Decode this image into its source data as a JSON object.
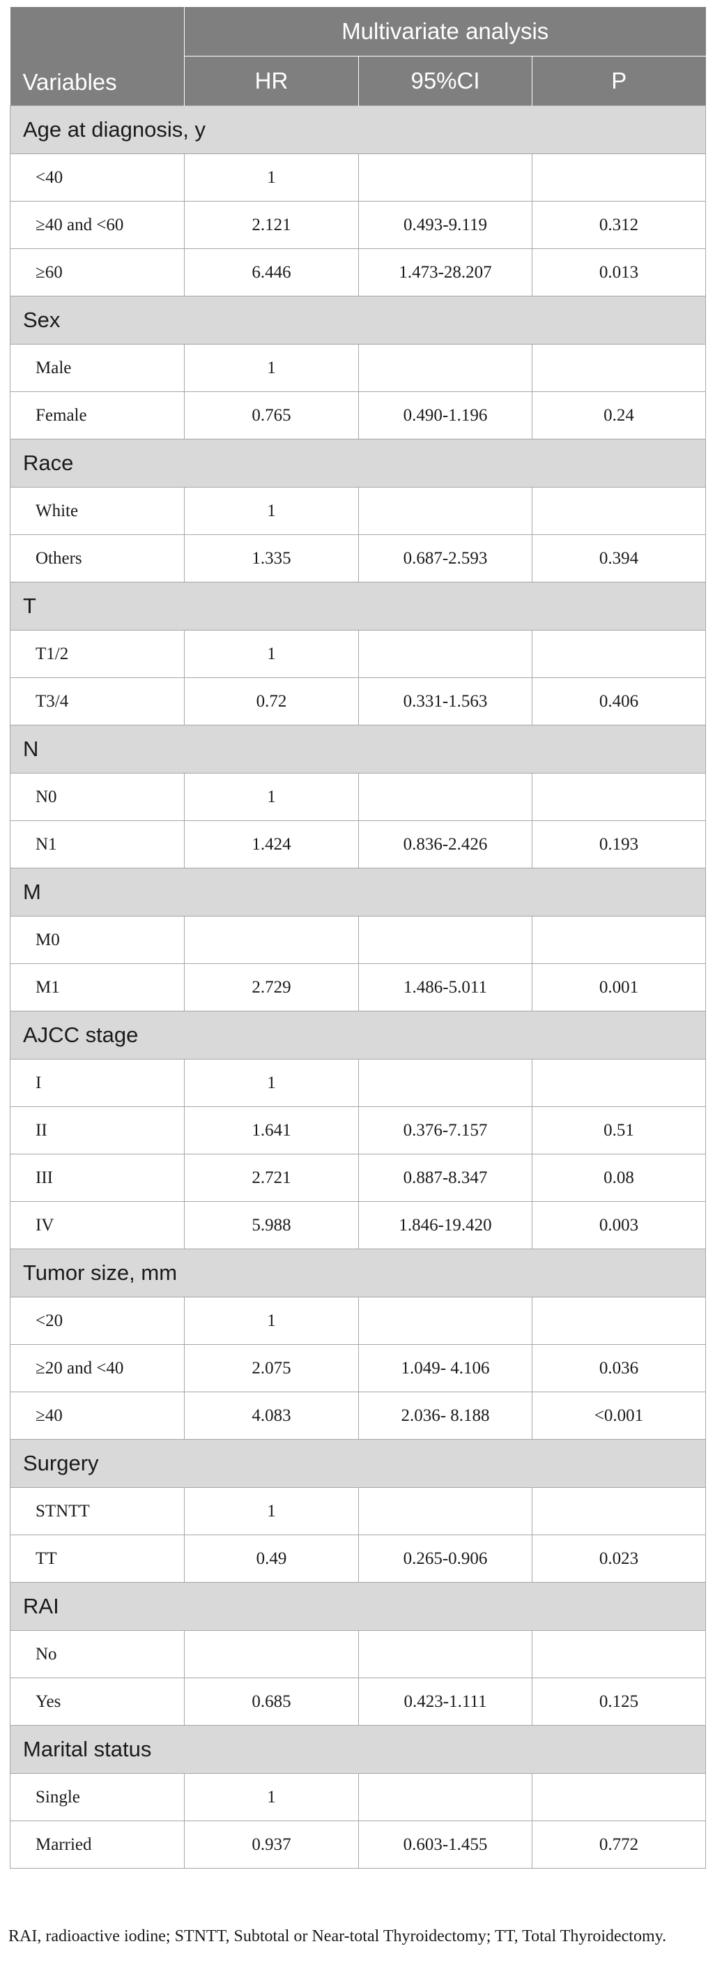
{
  "header": {
    "group_label": "Multivariate analysis",
    "variables_label": "Variables",
    "col_hr": "HR",
    "col_ci": "95%CI",
    "col_p": "P"
  },
  "groups": [
    {
      "name": "Age at diagnosis, y",
      "rows": [
        {
          "label": "<40",
          "hr": "1",
          "ci": "",
          "p": ""
        },
        {
          "label": "≥40 and <60",
          "hr": "2.121",
          "ci": "0.493-9.119",
          "p": "0.312"
        },
        {
          "label": "≥60",
          "hr": "6.446",
          "ci": "1.473-28.207",
          "p": "0.013"
        }
      ]
    },
    {
      "name": "Sex",
      "rows": [
        {
          "label": "Male",
          "hr": "1",
          "ci": "",
          "p": ""
        },
        {
          "label": "Female",
          "hr": "0.765",
          "ci": "0.490-1.196",
          "p": "0.24"
        }
      ]
    },
    {
      "name": "Race",
      "rows": [
        {
          "label": "White",
          "hr": "1",
          "ci": "",
          "p": ""
        },
        {
          "label": "Others",
          "hr": "1.335",
          "ci": "0.687-2.593",
          "p": "0.394"
        }
      ]
    },
    {
      "name": "T",
      "rows": [
        {
          "label": "T1/2",
          "hr": "1",
          "ci": "",
          "p": ""
        },
        {
          "label": "T3/4",
          "hr": "0.72",
          "ci": "0.331-1.563",
          "p": "0.406"
        }
      ]
    },
    {
      "name": "N",
      "rows": [
        {
          "label": "N0",
          "hr": "1",
          "ci": "",
          "p": ""
        },
        {
          "label": "N1",
          "hr": "1.424",
          "ci": "0.836-2.426",
          "p": "0.193"
        }
      ]
    },
    {
      "name": "M",
      "rows": [
        {
          "label": "M0",
          "hr": "",
          "ci": "",
          "p": ""
        },
        {
          "label": "M1",
          "hr": "2.729",
          "ci": "1.486-5.011",
          "p": "0.001"
        }
      ]
    },
    {
      "name": "AJCC stage",
      "rows": [
        {
          "label": "I",
          "hr": "1",
          "ci": "",
          "p": ""
        },
        {
          "label": "II",
          "hr": "1.641",
          "ci": "0.376-7.157",
          "p": "0.51"
        },
        {
          "label": "III",
          "hr": "2.721",
          "ci": "0.887-8.347",
          "p": "0.08"
        },
        {
          "label": "IV",
          "hr": "5.988",
          "ci": "1.846-19.420",
          "p": "0.003"
        }
      ]
    },
    {
      "name": "Tumor size, mm",
      "rows": [
        {
          "label": "<20",
          "hr": "1",
          "ci": "",
          "p": ""
        },
        {
          "label": "≥20 and <40",
          "hr": "2.075",
          "ci": "1.049- 4.106",
          "p": "0.036"
        },
        {
          "label": "≥40",
          "hr": "4.083",
          "ci": "2.036- 8.188",
          "p": "<0.001"
        }
      ]
    },
    {
      "name": "Surgery",
      "rows": [
        {
          "label": "STNTT",
          "hr": "1",
          "ci": "",
          "p": ""
        },
        {
          "label": "TT",
          "hr": "0.49",
          "ci": "0.265-0.906",
          "p": "0.023"
        }
      ]
    },
    {
      "name": "RAI",
      "rows": [
        {
          "label": "No",
          "hr": "",
          "ci": "",
          "p": ""
        },
        {
          "label": "Yes",
          "hr": "0.685",
          "ci": "0.423-1.111",
          "p": "0.125"
        }
      ]
    },
    {
      "name": "Marital status",
      "rows": [
        {
          "label": "Single",
          "hr": "1",
          "ci": "",
          "p": ""
        },
        {
          "label": "Married",
          "hr": "0.937",
          "ci": "0.603-1.455",
          "p": "0.772"
        }
      ]
    }
  ],
  "footnote": "RAI, radioactive iodine; STNTT, Subtotal or Near-total Thyroidectomy; TT, Total Thyroidectomy.",
  "colors": {
    "header_bg": "#7f7f7f",
    "group_bg": "#d9d9d9",
    "border": "#a6a6a6"
  }
}
